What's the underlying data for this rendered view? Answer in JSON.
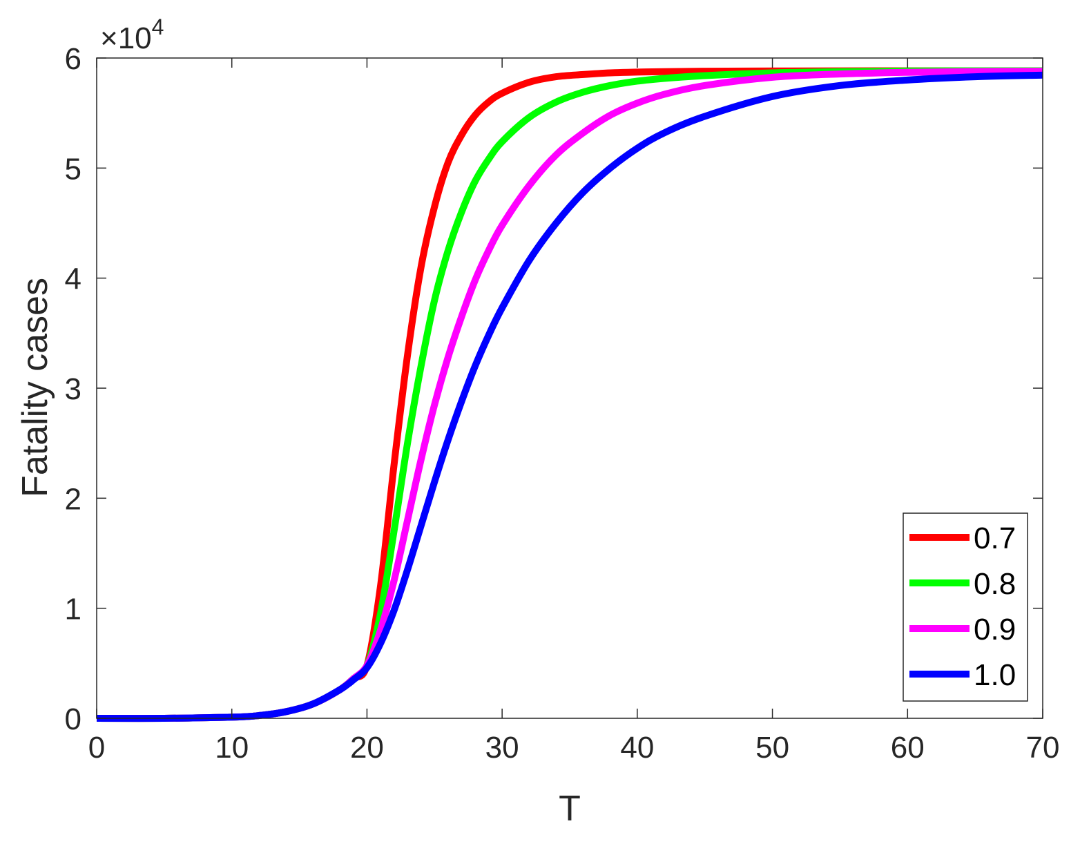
{
  "chart_data": {
    "type": "line",
    "xlabel": "T",
    "ylabel": "Fatality cases",
    "xlim": [
      0,
      70
    ],
    "ylim": [
      0,
      60000
    ],
    "y_exponent_label": "×10",
    "y_exponent_power": "4",
    "x_ticks": [
      0,
      10,
      20,
      30,
      40,
      50,
      60,
      70
    ],
    "y_ticks": [
      0,
      10000,
      20000,
      30000,
      40000,
      50000,
      60000
    ],
    "x_tick_labels": [
      "0",
      "10",
      "20",
      "30",
      "40",
      "50",
      "60",
      "70"
    ],
    "y_tick_labels": [
      "0",
      "1",
      "2",
      "3",
      "4",
      "5",
      "6"
    ],
    "grid": false,
    "legend_position": "bottom-right",
    "x": [
      0,
      5,
      10,
      12,
      14,
      16,
      18,
      19,
      20,
      21,
      22,
      23,
      24,
      25,
      26,
      27,
      28,
      29,
      30,
      32,
      34,
      36,
      38,
      40,
      42,
      45,
      50,
      55,
      60,
      65,
      70
    ],
    "series": [
      {
        "name": "0.7",
        "color": "#ff0000",
        "values": [
          0,
          0,
          100,
          250,
          600,
          1300,
          2600,
          3600,
          4800,
          12000,
          23000,
          33000,
          41000,
          46500,
          50500,
          53000,
          54800,
          56000,
          56800,
          57800,
          58300,
          58500,
          58650,
          58720,
          58760,
          58800,
          58820,
          58830,
          58840,
          58840,
          58840
        ]
      },
      {
        "name": "0.8",
        "color": "#00ff00",
        "values": [
          0,
          0,
          100,
          250,
          600,
          1300,
          2600,
          3600,
          4800,
          9500,
          17000,
          25000,
          32000,
          38000,
          42500,
          46000,
          48800,
          50800,
          52400,
          54600,
          56000,
          56900,
          57500,
          57900,
          58150,
          58400,
          58650,
          58760,
          58820,
          58840,
          58840
        ]
      },
      {
        "name": "0.9",
        "color": "#ff00ff",
        "values": [
          0,
          0,
          100,
          250,
          600,
          1300,
          2600,
          3600,
          4800,
          8000,
          12500,
          18000,
          23500,
          28500,
          32800,
          36500,
          39800,
          42500,
          44800,
          48400,
          51200,
          53200,
          54800,
          55900,
          56700,
          57500,
          58250,
          58550,
          58700,
          58780,
          58800
        ]
      },
      {
        "name": "1.0",
        "color": "#0000ff",
        "values": [
          0,
          0,
          100,
          250,
          600,
          1300,
          2600,
          3500,
          4600,
          6800,
          9800,
          13500,
          17500,
          21500,
          25300,
          28800,
          32000,
          34800,
          37300,
          41600,
          45000,
          47800,
          50000,
          51800,
          53200,
          54700,
          56500,
          57500,
          58000,
          58300,
          58450
        ]
      }
    ]
  }
}
